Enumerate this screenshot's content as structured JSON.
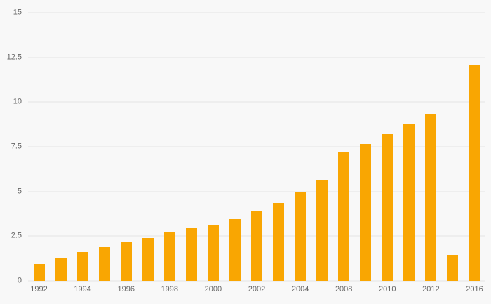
{
  "chart_data": {
    "type": "bar",
    "title": "",
    "xlabel": "",
    "ylabel": "",
    "categories": [
      1992,
      1993,
      1994,
      1995,
      1996,
      1997,
      1998,
      1999,
      2000,
      2001,
      2002,
      2003,
      2004,
      2006,
      2008,
      2009,
      2010,
      2011,
      2012,
      2014,
      2016
    ],
    "values": [
      0.95,
      1.25,
      1.6,
      1.9,
      2.2,
      2.4,
      2.7,
      2.95,
      3.1,
      3.45,
      3.9,
      4.35,
      5.0,
      5.6,
      7.2,
      7.65,
      8.2,
      8.75,
      9.35,
      1.45,
      12.05
    ],
    "x_tick_labels": [
      "1992",
      "",
      "1994",
      "",
      "1996",
      "",
      "1998",
      "",
      "2000",
      "",
      "2002",
      "",
      "2004",
      "",
      "2008",
      "",
      "2010",
      "",
      "2012",
      "",
      "2016"
    ],
    "y_ticks": [
      0,
      2.5,
      5,
      7.5,
      10,
      12.5,
      15
    ],
    "ylim": [
      0,
      15
    ],
    "grid": true,
    "legend": "none",
    "bar_color": "#F9A602",
    "background_color": "#F8F8F8",
    "gridline_color": "#E4E4E4",
    "tick_label_color": "#666666"
  }
}
